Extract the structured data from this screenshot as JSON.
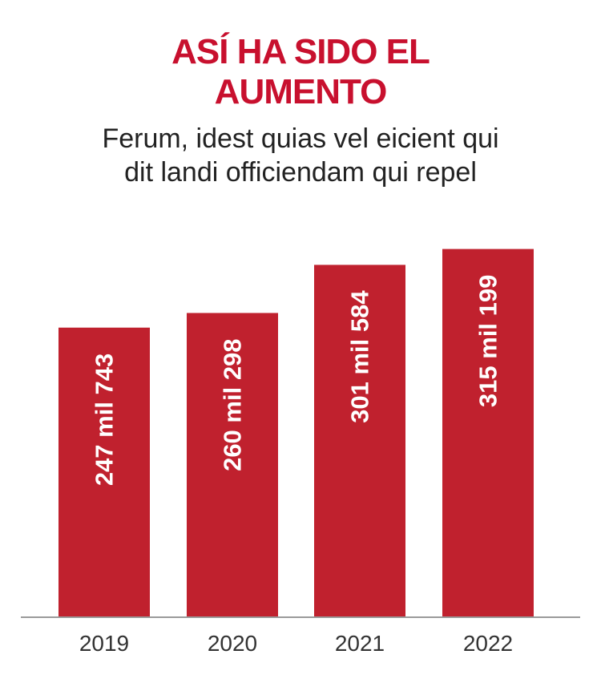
{
  "chart_data": {
    "type": "bar",
    "title_lines": [
      "ASÍ HA SIDO EL",
      "AUMENTO"
    ],
    "subtitle_lines": [
      "Ferum, idest quias vel eicient qui",
      "dit landi officiendam qui repel"
    ],
    "categories": [
      "2019",
      "2020",
      "2021",
      "2022"
    ],
    "values": [
      247743,
      260298,
      301584,
      315199
    ],
    "value_labels": [
      "247 mil 743",
      "260 mil 298",
      "301 mil 584",
      "315 mil 199"
    ],
    "xlabel": "",
    "ylabel": "",
    "ylim": [
      0,
      350000
    ],
    "grid": false,
    "legend": "none",
    "bar_color": "#c0212e",
    "axis_color": "#9a9a9a"
  }
}
